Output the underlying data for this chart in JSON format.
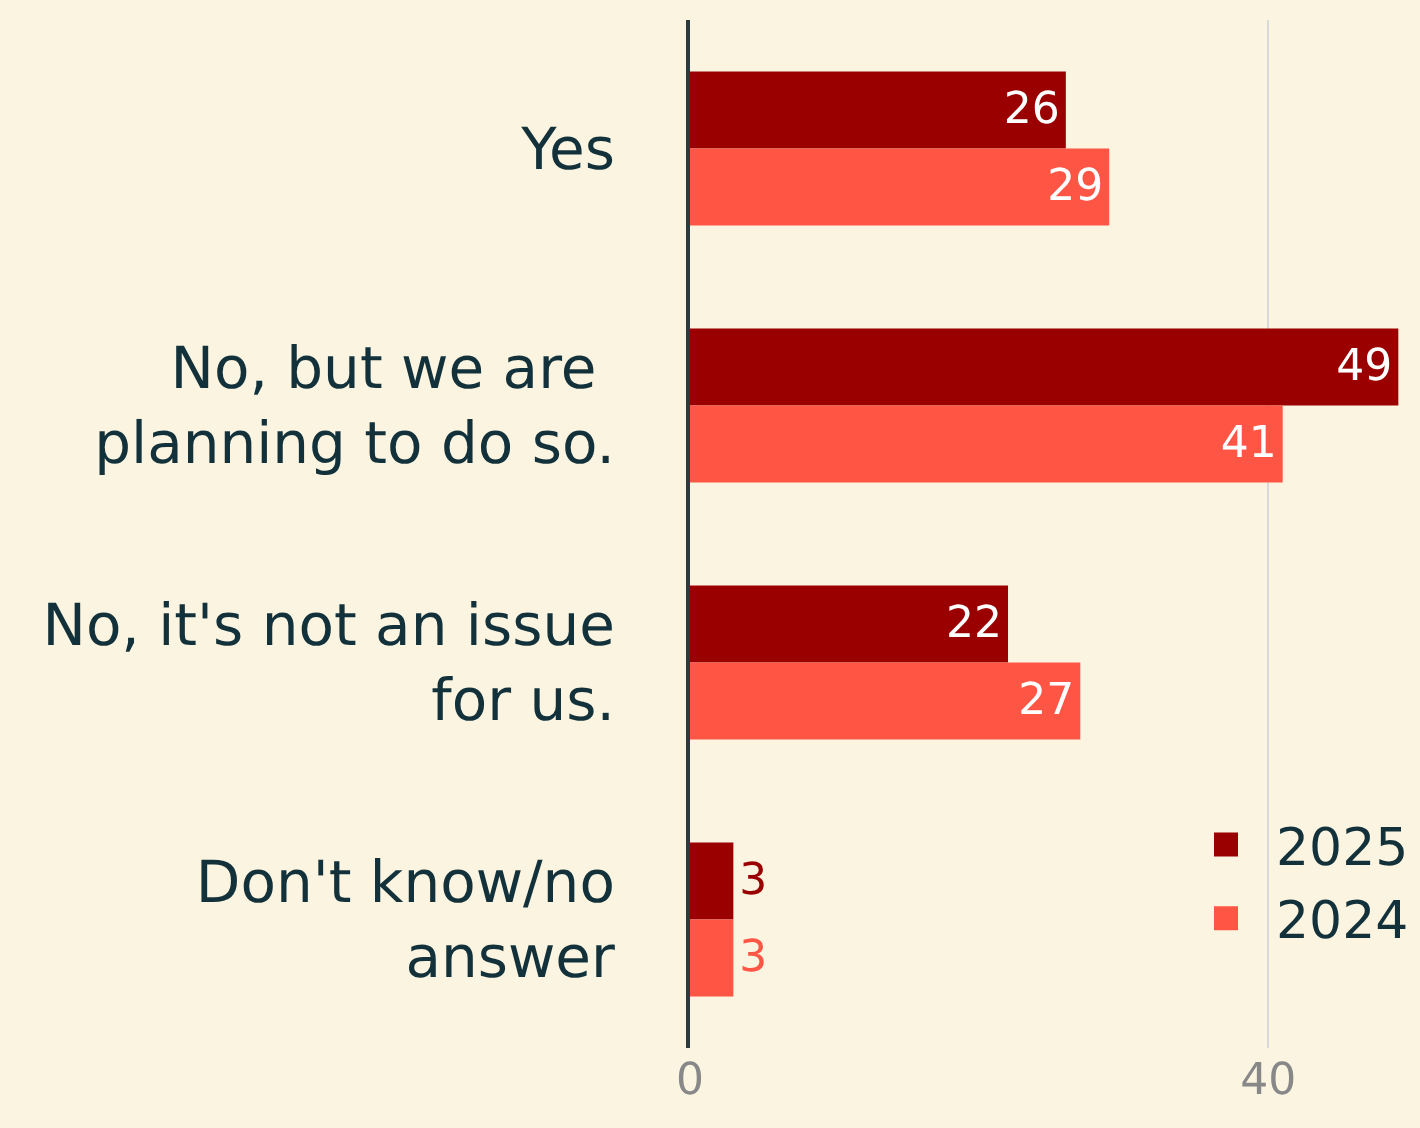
{
  "chart_data": {
    "type": "bar",
    "orientation": "horizontal",
    "categories": [
      "Yes",
      "No, but we are planning to do so.",
      "No, it's not an issue for us.",
      "Don't know/no answer"
    ],
    "series": [
      {
        "name": "2025",
        "color": "#9b0000",
        "values": [
          26,
          49,
          22,
          3
        ]
      },
      {
        "name": "2024",
        "color": "#ff5545",
        "values": [
          29,
          41,
          27,
          3
        ]
      }
    ],
    "xlim": [
      0,
      50.5
    ],
    "xticks": [
      0,
      40
    ],
    "grid": "x",
    "legend": "bottom right",
    "data_labels": true
  }
}
